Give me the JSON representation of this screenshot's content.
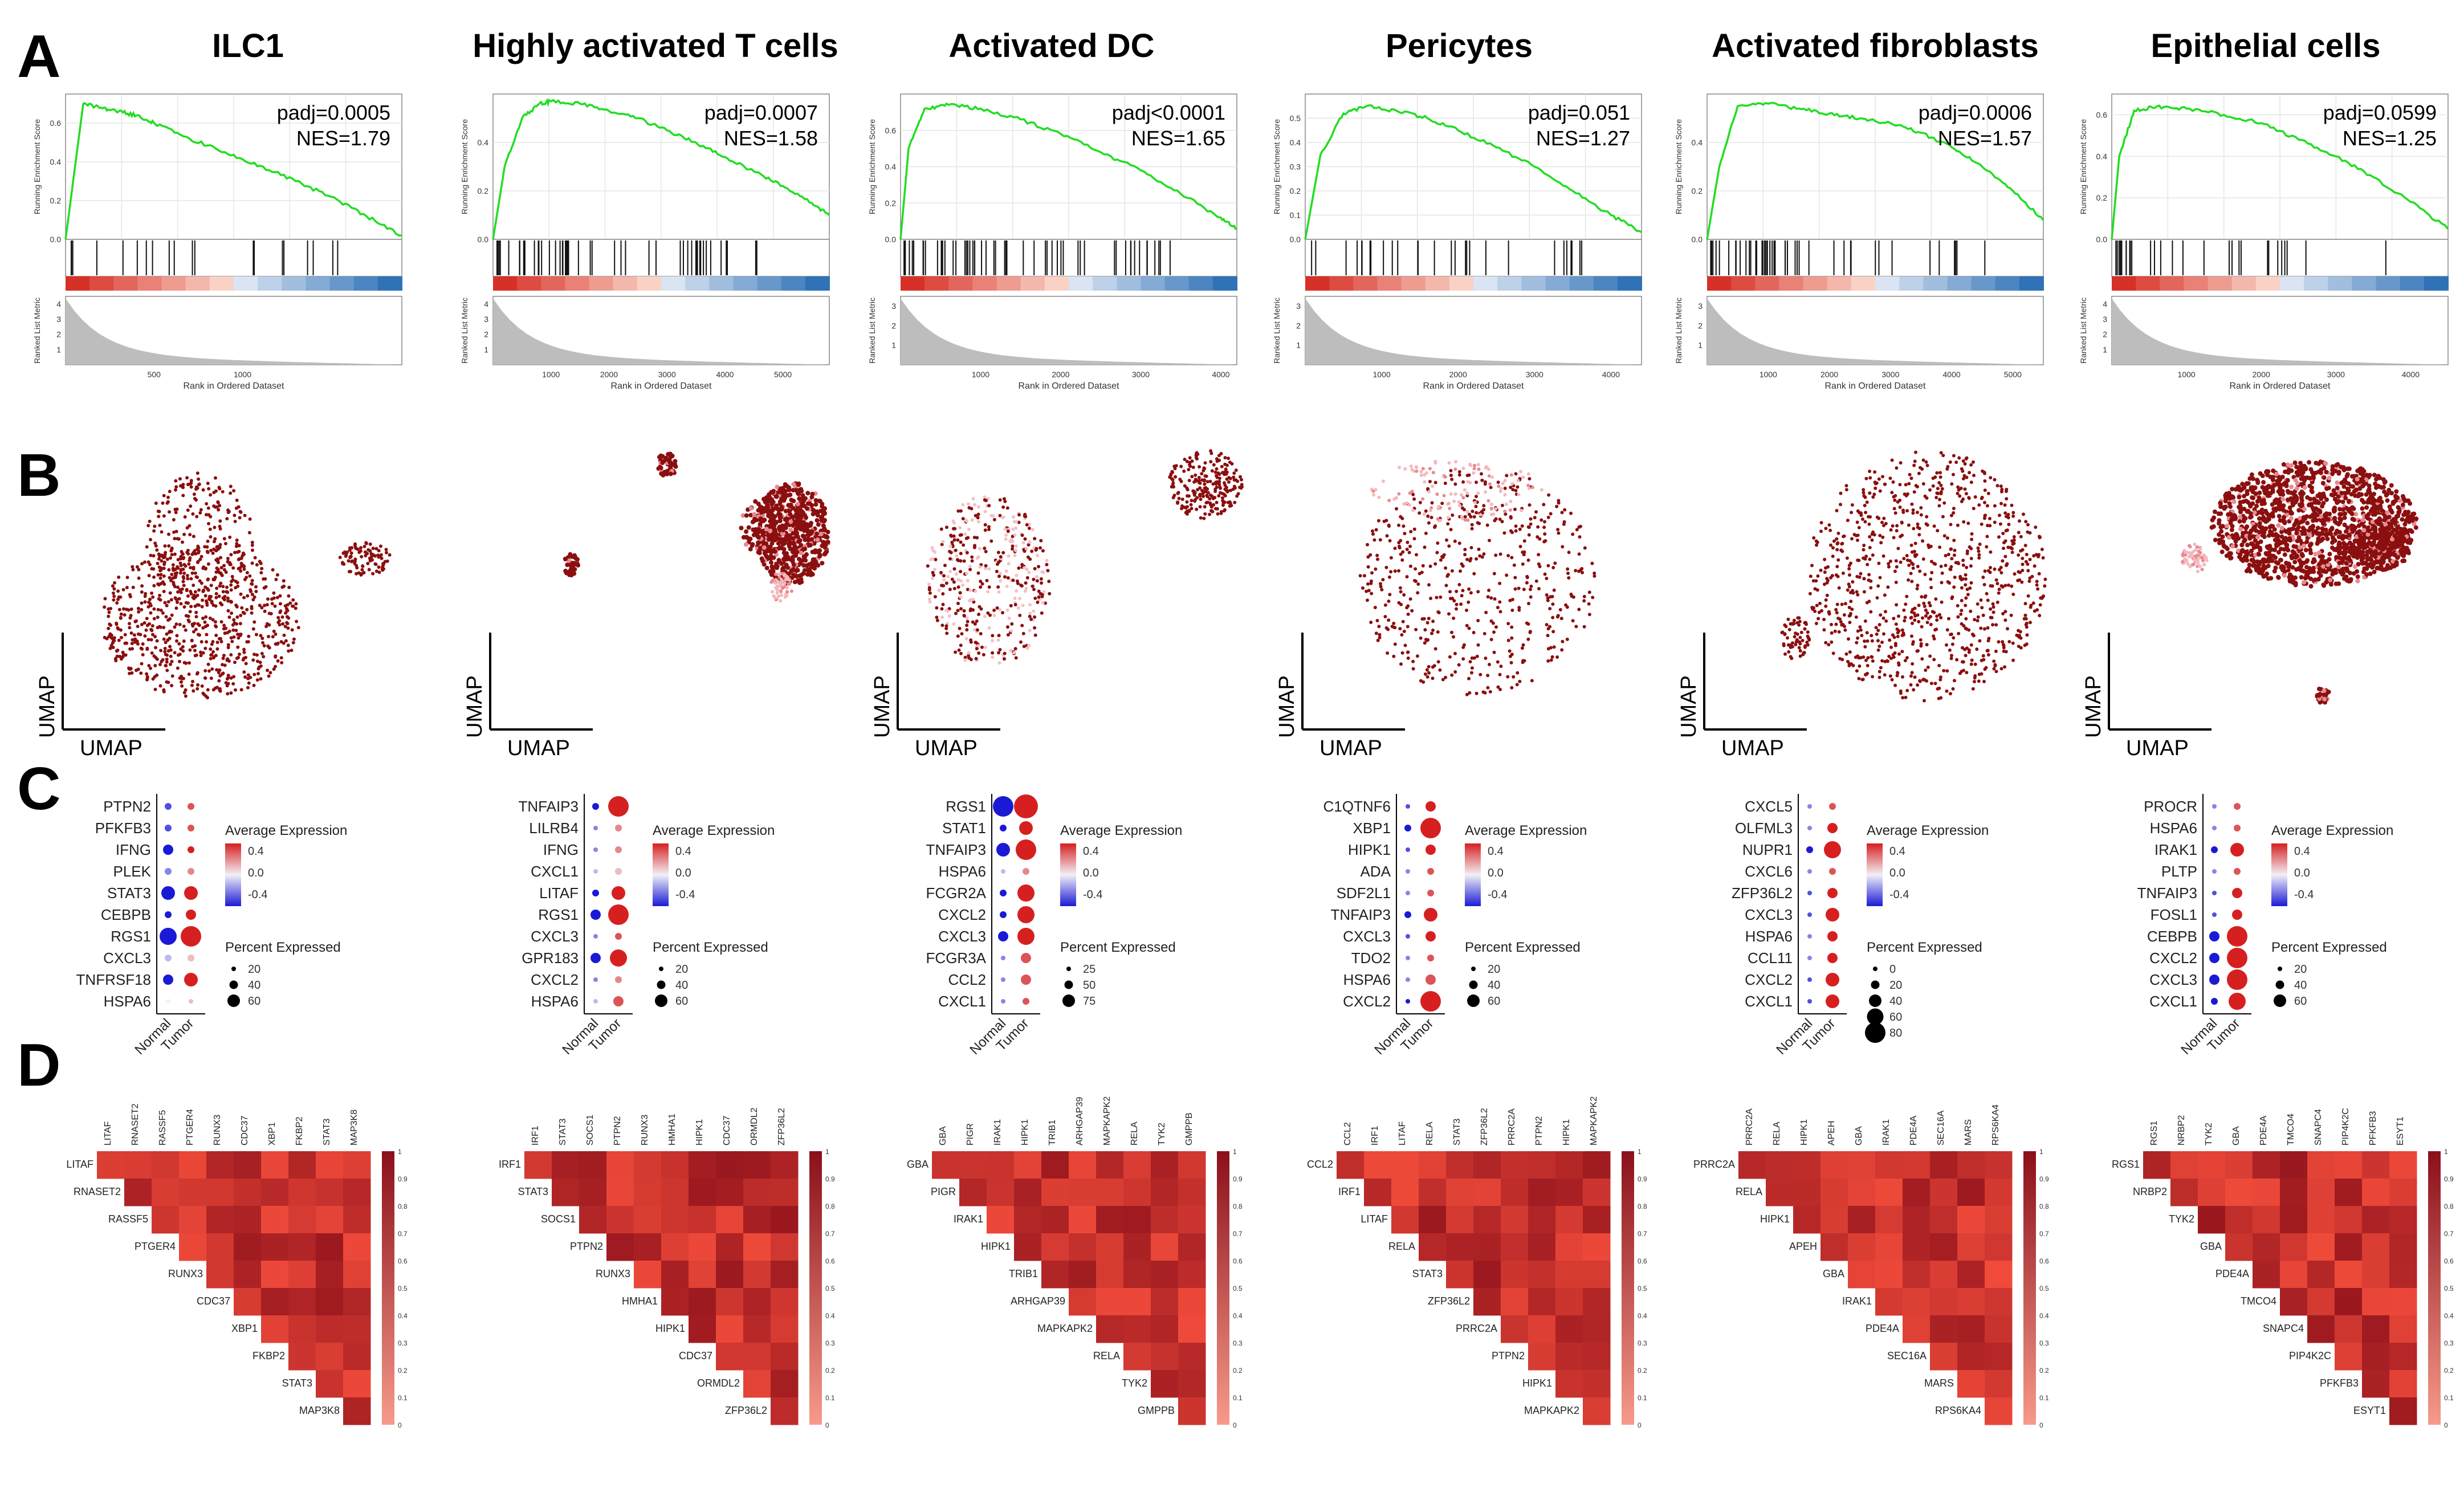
{
  "panels": {
    "A": "A",
    "B": "B",
    "C": "C",
    "D": "D"
  },
  "gsea_labels": {
    "y_top": "Running Enrichment Score",
    "y_bottom": "Ranked List Metric",
    "x": "Rank in Ordered Dataset"
  },
  "umap_labels": {
    "x": "UMAP",
    "y": "UMAP"
  },
  "dot_labels": {
    "avg_title": "Average Expression",
    "pct_title": "Percent Expressed",
    "x_groups": [
      "Normal",
      "Tumor"
    ]
  },
  "columns": [
    {
      "title": "ILC1",
      "gsea": {
        "padj": "padj=0.0005",
        "nes": "NES=1.79",
        "x_ticks": [
          "500",
          "1000"
        ],
        "y_ticks": [
          "0.0",
          "0.2",
          "0.4",
          "0.6"
        ],
        "metric_ticks": [
          "1",
          "2",
          "3",
          "4"
        ],
        "hit_count": 20
      },
      "dot": {
        "genes": [
          "PTPN2",
          "PFKFB3",
          "IFNG",
          "PLEK",
          "STAT3",
          "CEBPB",
          "RGS1",
          "CXCL3",
          "TNFRSF18",
          "HSPA6"
        ],
        "normal_size": [
          2,
          2,
          3,
          2,
          4,
          2,
          5,
          2,
          3,
          1
        ],
        "tumor_size": [
          2,
          2,
          2,
          2,
          4,
          3,
          6,
          2,
          4,
          1
        ],
        "normal_expr": [
          -0.3,
          -0.3,
          -0.4,
          -0.2,
          -0.4,
          -0.4,
          -0.4,
          -0.1,
          -0.4,
          0.0
        ],
        "tumor_expr": [
          0.3,
          0.3,
          0.4,
          0.2,
          0.4,
          0.4,
          0.4,
          0.1,
          0.4,
          0.1
        ],
        "avg_ticks": [
          "0.4",
          "0.0",
          "-0.4"
        ],
        "pct_ticks": [
          "20",
          "40",
          "60"
        ]
      },
      "corr": {
        "genes": [
          "LITAF",
          "RNASET2",
          "RASSF5",
          "PTGER4",
          "RUNX3",
          "CDC37",
          "XBP1",
          "FKBP2",
          "STAT3",
          "MAP3K8"
        ],
        "min": 0.4,
        "max": 0.7
      },
      "colorbar_ticks": [
        "1",
        "0.9",
        "0.8",
        "0.7",
        "0.6",
        "0.5",
        "0.4",
        "0.3",
        "0.2",
        "0.1",
        "0"
      ]
    },
    {
      "title": "Highly activated T cells",
      "gsea": {
        "padj": "padj=0.0007",
        "nes": "NES=1.58",
        "x_ticks": [
          "1000",
          "2000",
          "3000",
          "4000",
          "5000"
        ],
        "y_ticks": [
          "0.0",
          "0.2",
          "0.4"
        ],
        "metric_ticks": [
          "1",
          "2",
          "3",
          "4"
        ],
        "hit_count": 50
      },
      "dot": {
        "genes": [
          "TNFAIP3",
          "LILRB4",
          "IFNG",
          "CXCL1",
          "LITAF",
          "RGS1",
          "CXCL3",
          "GPR183",
          "CXCL2",
          "HSPA6"
        ],
        "normal_size": [
          2,
          1,
          1,
          1,
          2,
          3,
          1,
          3,
          1,
          1
        ],
        "tumor_size": [
          6,
          2,
          2,
          2,
          4,
          6,
          2,
          5,
          2,
          3
        ],
        "normal_expr": [
          -0.4,
          -0.2,
          -0.2,
          -0.1,
          -0.4,
          -0.4,
          -0.2,
          -0.4,
          -0.2,
          -0.1
        ],
        "tumor_expr": [
          0.4,
          0.2,
          0.2,
          0.1,
          0.4,
          0.4,
          0.3,
          0.4,
          0.2,
          0.3
        ],
        "avg_ticks": [
          "0.4",
          "0.0",
          "-0.4"
        ],
        "pct_ticks": [
          "20",
          "40",
          "60"
        ]
      },
      "corr": {
        "genes": [
          "IRF1",
          "STAT3",
          "SOCS1",
          "PTPN2",
          "RUNX3",
          "HMHA1",
          "HIPK1",
          "CDC37",
          "ORMDL2",
          "ZFP36L2"
        ],
        "min": 0.65,
        "max": 0.95
      },
      "colorbar_ticks": [
        "1",
        "0.9",
        "0.8",
        "0.7",
        "0.6",
        "0.5",
        "0.4",
        "0.3",
        "0.2",
        "0.1",
        "0"
      ]
    },
    {
      "title": "Activated DC",
      "gsea": {
        "padj": "padj<0.0001",
        "nes": "NES=1.65",
        "x_ticks": [
          "1000",
          "2000",
          "3000",
          "4000"
        ],
        "y_ticks": [
          "0.0",
          "0.2",
          "0.4",
          "0.6"
        ],
        "metric_ticks": [
          "1",
          "2",
          "3"
        ],
        "hit_count": 55
      },
      "dot": {
        "genes": [
          "RGS1",
          "STAT1",
          "TNFAIP3",
          "HSPA6",
          "FCGR2A",
          "CXCL2",
          "CXCL3",
          "FCGR3A",
          "CCL2",
          "CXCL1"
        ],
        "normal_size": [
          6,
          2,
          4,
          1,
          2,
          2,
          3,
          1,
          1,
          1
        ],
        "tumor_size": [
          7,
          4,
          6,
          2,
          5,
          5,
          5,
          3,
          3,
          2
        ],
        "normal_expr": [
          -0.4,
          -0.4,
          -0.4,
          -0.1,
          -0.4,
          -0.4,
          -0.4,
          -0.2,
          -0.2,
          -0.2
        ],
        "tumor_expr": [
          0.4,
          0.4,
          0.4,
          0.2,
          0.4,
          0.4,
          0.4,
          0.3,
          0.3,
          0.3
        ],
        "avg_ticks": [
          "0.4",
          "0.0",
          "-0.4"
        ],
        "pct_ticks": [
          "25",
          "50",
          "75"
        ]
      },
      "corr": {
        "genes": [
          "GBA",
          "PIGR",
          "IRAK1",
          "HIPK1",
          "TRIB1",
          "ARHGAP39",
          "MAPKAPK2",
          "RELA",
          "TYK2",
          "GMPPB"
        ],
        "min": 0.6,
        "max": 0.9
      },
      "colorbar_ticks": [
        "1",
        "0.9",
        "0.8",
        "0.7",
        "0.6",
        "0.5",
        "0.4",
        "0.3",
        "0.2",
        "0.1",
        "0"
      ]
    },
    {
      "title": "Pericytes",
      "gsea": {
        "padj": "padj=0.051",
        "nes": "NES=1.27",
        "x_ticks": [
          "1000",
          "2000",
          "3000",
          "4000"
        ],
        "y_ticks": [
          "0.0",
          "0.1",
          "0.2",
          "0.3",
          "0.4",
          "0.5"
        ],
        "metric_ticks": [
          "1",
          "2",
          "3"
        ],
        "hit_count": 30
      },
      "dot": {
        "genes": [
          "C1QTNF6",
          "XBP1",
          "HIPK1",
          "ADA",
          "SDF2L1",
          "TNFAIP3",
          "CXCL3",
          "TDO2",
          "HSPA6",
          "CXCL2"
        ],
        "normal_size": [
          1,
          2,
          1,
          1,
          1,
          2,
          1,
          1,
          1,
          1
        ],
        "tumor_size": [
          3,
          6,
          3,
          2,
          2,
          4,
          3,
          2,
          3,
          6
        ],
        "normal_expr": [
          -0.3,
          -0.4,
          -0.3,
          -0.2,
          -0.2,
          -0.4,
          -0.3,
          -0.2,
          -0.2,
          -0.4
        ],
        "tumor_expr": [
          0.4,
          0.4,
          0.4,
          0.3,
          0.3,
          0.4,
          0.4,
          0.3,
          0.3,
          0.4
        ],
        "avg_ticks": [
          "0.4",
          "0.0",
          "-0.4"
        ],
        "pct_ticks": [
          "20",
          "40",
          "60"
        ]
      },
      "corr": {
        "genes": [
          "CCL2",
          "IRF1",
          "LITAF",
          "RELA",
          "STAT3",
          "ZFP36L2",
          "PRRC2A",
          "PTPN2",
          "HIPK1",
          "MAPKAPK2"
        ],
        "min": 0.55,
        "max": 0.9
      },
      "colorbar_ticks": [
        "1",
        "0.9",
        "0.8",
        "0.7",
        "0.6",
        "0.5",
        "0.4",
        "0.3",
        "0.2",
        "0.1",
        "0"
      ]
    },
    {
      "title": "Activated fibroblasts",
      "gsea": {
        "padj": "padj=0.0006",
        "nes": "NES=1.57",
        "x_ticks": [
          "1000",
          "2000",
          "3000",
          "4000",
          "5000"
        ],
        "y_ticks": [
          "0.0",
          "0.2",
          "0.4"
        ],
        "metric_ticks": [
          "1",
          "2",
          "3"
        ],
        "hit_count": 45
      },
      "dot": {
        "genes": [
          "CXCL5",
          "OLFML3",
          "NUPR1",
          "CXCL6",
          "ZFP36L2",
          "CXCL3",
          "HSPA6",
          "CCL11",
          "CXCL2",
          "CXCL1"
        ],
        "normal_size": [
          1,
          1,
          2,
          1,
          1,
          1,
          1,
          1,
          1,
          1
        ],
        "tumor_size": [
          2,
          3,
          5,
          2,
          3,
          4,
          3,
          3,
          4,
          4
        ],
        "normal_expr": [
          -0.2,
          -0.2,
          -0.4,
          -0.2,
          -0.3,
          -0.3,
          -0.2,
          -0.2,
          -0.3,
          -0.3
        ],
        "tumor_expr": [
          0.3,
          0.4,
          0.4,
          0.3,
          0.4,
          0.4,
          0.4,
          0.4,
          0.4,
          0.4
        ],
        "avg_ticks": [
          "0.4",
          "0.0",
          "-0.4"
        ],
        "pct_ticks": [
          "0",
          "20",
          "40",
          "60",
          "80"
        ]
      },
      "corr": {
        "genes": [
          "PRRC2A",
          "RELA",
          "HIPK1",
          "APEH",
          "GBA",
          "IRAK1",
          "PDE4A",
          "SEC16A",
          "MARS",
          "RPS6KA4"
        ],
        "min": 0.7,
        "max": 0.95
      },
      "colorbar_ticks": [
        "1",
        "0.9",
        "0.8",
        "0.7",
        "0.6",
        "0.5",
        "0.4",
        "0.3",
        "0.2",
        "0.1",
        "0"
      ]
    },
    {
      "title": "Epithelial cells",
      "gsea": {
        "padj": "padj=0.0599",
        "nes": "NES=1.25",
        "x_ticks": [
          "1000",
          "2000",
          "3000",
          "4000"
        ],
        "y_ticks": [
          "0.0",
          "0.2",
          "0.4",
          "0.6"
        ],
        "metric_ticks": [
          "1",
          "2",
          "3",
          "4"
        ],
        "hit_count": 30
      },
      "dot": {
        "genes": [
          "PROCR",
          "HSPA6",
          "IRAK1",
          "PLTP",
          "TNFAIP3",
          "FOSL1",
          "CEBPB",
          "CXCL2",
          "CXCL3",
          "CXCL1"
        ],
        "normal_size": [
          1,
          1,
          2,
          1,
          1,
          1,
          3,
          3,
          3,
          2
        ],
        "tumor_size": [
          2,
          2,
          4,
          2,
          3,
          3,
          6,
          6,
          6,
          5
        ],
        "normal_expr": [
          -0.2,
          -0.2,
          -0.4,
          -0.2,
          -0.3,
          -0.3,
          -0.4,
          -0.4,
          -0.4,
          -0.4
        ],
        "tumor_expr": [
          0.3,
          0.3,
          0.4,
          0.3,
          0.4,
          0.4,
          0.4,
          0.4,
          0.4,
          0.4
        ],
        "avg_ticks": [
          "0.4",
          "0.0",
          "-0.4"
        ],
        "pct_ticks": [
          "20",
          "40",
          "60"
        ]
      },
      "corr": {
        "genes": [
          "RGS1",
          "NRBP2",
          "TYK2",
          "GBA",
          "PDE4A",
          "TMCO4",
          "SNAPC4",
          "PIP4K2C",
          "PFKFB3",
          "ESYT1"
        ],
        "min": 0.75,
        "max": 0.97
      },
      "colorbar_ticks": [
        "1",
        "0.9",
        "0.8",
        "0.7",
        "0.6",
        "0.5",
        "0.4",
        "0.3",
        "0.2",
        "0.1",
        "0"
      ]
    }
  ],
  "chart_data": [
    {
      "type": "line",
      "title": "ILC1",
      "xlabel": "Rank in Ordered Dataset",
      "ylabel": "Running Enrichment Score",
      "x": [
        0,
        100,
        200,
        300,
        400,
        500,
        700,
        900,
        1100,
        1300,
        1500,
        1700,
        1900
      ],
      "y": [
        0.0,
        0.7,
        0.68,
        0.66,
        0.64,
        0.6,
        0.52,
        0.45,
        0.38,
        0.3,
        0.22,
        0.12,
        0.02
      ],
      "xlim": [
        0,
        1900
      ],
      "ylim": [
        0.0,
        0.75
      ]
    },
    {
      "type": "line",
      "title": "Highly activated T cells",
      "xlabel": "Rank in Ordered Dataset",
      "ylabel": "Running Enrichment Score",
      "x": [
        0,
        200,
        500,
        800,
        1000,
        1500,
        2000,
        2500,
        3000,
        3500,
        4000,
        4500,
        5000,
        5500,
        5800
      ],
      "y": [
        0.0,
        0.3,
        0.5,
        0.56,
        0.57,
        0.56,
        0.53,
        0.5,
        0.45,
        0.4,
        0.34,
        0.28,
        0.22,
        0.15,
        0.1
      ],
      "xlim": [
        0,
        5800
      ],
      "ylim": [
        0.0,
        0.6
      ]
    },
    {
      "type": "line",
      "title": "Activated DC",
      "xlabel": "Rank in Ordered Dataset",
      "ylabel": "Running Enrichment Score",
      "x": [
        0,
        100,
        300,
        600,
        1000,
        1500,
        2000,
        2500,
        3000,
        3500,
        4000,
        4200
      ],
      "y": [
        0.0,
        0.5,
        0.72,
        0.74,
        0.72,
        0.66,
        0.58,
        0.48,
        0.38,
        0.25,
        0.12,
        0.06
      ],
      "xlim": [
        0,
        4200
      ],
      "ylim": [
        0.0,
        0.8
      ]
    },
    {
      "type": "line",
      "title": "Pericytes",
      "xlabel": "Rank in Ordered Dataset",
      "ylabel": "Running Enrichment Score",
      "x": [
        0,
        200,
        500,
        800,
        1200,
        1600,
        2000,
        2500,
        3000,
        3500,
        4000,
        4400
      ],
      "y": [
        0.0,
        0.35,
        0.52,
        0.55,
        0.53,
        0.5,
        0.45,
        0.38,
        0.3,
        0.2,
        0.1,
        0.03
      ],
      "xlim": [
        0,
        4400
      ],
      "ylim": [
        0.0,
        0.6
      ]
    },
    {
      "type": "line",
      "title": "Activated fibroblasts",
      "xlabel": "Rank in Ordered Dataset",
      "ylabel": "Running Enrichment Score",
      "x": [
        0,
        200,
        500,
        1000,
        1500,
        2000,
        2500,
        3000,
        3500,
        4000,
        4500,
        5000,
        5500
      ],
      "y": [
        0.0,
        0.3,
        0.55,
        0.56,
        0.54,
        0.52,
        0.5,
        0.48,
        0.44,
        0.38,
        0.3,
        0.2,
        0.08
      ],
      "xlim": [
        0,
        5500
      ],
      "ylim": [
        0.0,
        0.6
      ]
    },
    {
      "type": "line",
      "title": "Epithelial cells",
      "xlabel": "Rank in Ordered Dataset",
      "ylabel": "Running Enrichment Score",
      "x": [
        0,
        100,
        300,
        600,
        1000,
        1500,
        2000,
        2500,
        3000,
        3500,
        4000,
        4500
      ],
      "y": [
        0.0,
        0.4,
        0.62,
        0.64,
        0.63,
        0.6,
        0.56,
        0.48,
        0.4,
        0.3,
        0.18,
        0.05
      ],
      "xlim": [
        0,
        4500
      ],
      "ylim": [
        0.0,
        0.7
      ]
    }
  ],
  "colors": {
    "curve": "#22dd22",
    "normal_dot": "#1a1ad6",
    "tumor_dot": "#d62020",
    "umap_dot": "#8b0f0f",
    "heat_low": "#ef4a3a",
    "heat_high": "#8b0f1a"
  }
}
